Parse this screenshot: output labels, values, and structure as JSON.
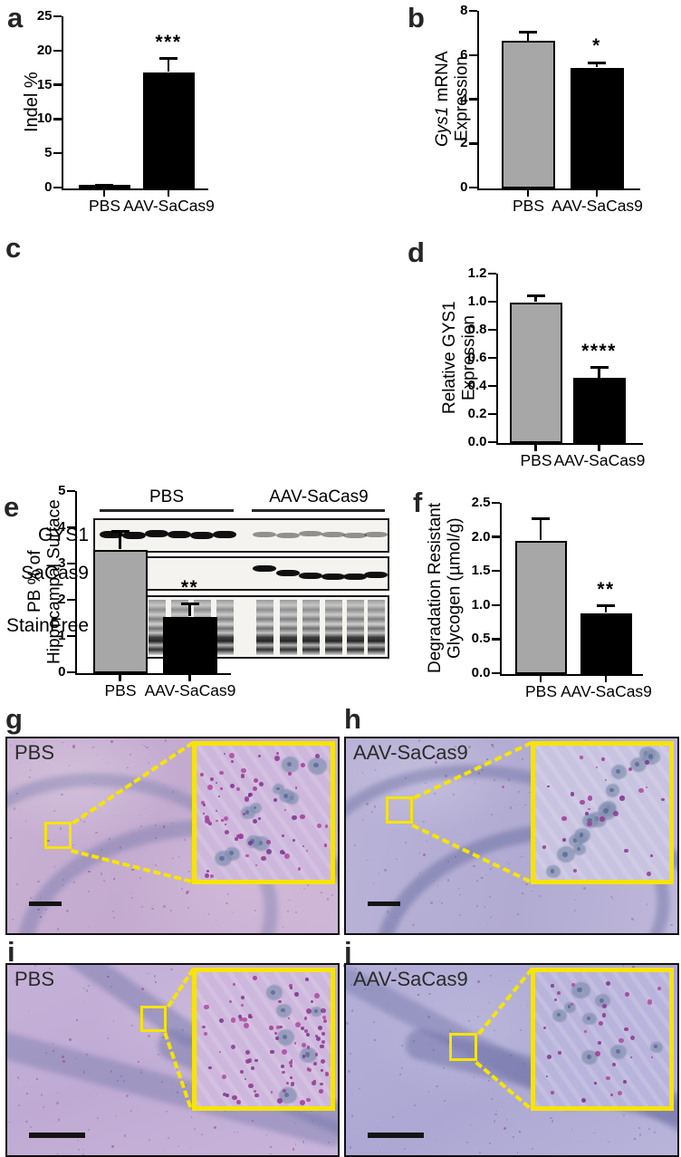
{
  "chart_data": [
    {
      "type": "bar",
      "panel": "a",
      "ylabel": "Indel %",
      "xlabel": "",
      "categories": [
        "PBS",
        "AAV-SaCas9"
      ],
      "values": [
        0.2,
        16.9
      ],
      "errors": [
        0.15,
        1.9
      ],
      "ylim": [
        0,
        25
      ],
      "yticks": [
        "0",
        "5",
        "10",
        "15",
        "20",
        "25"
      ],
      "bar_colors": [
        "#000000",
        "#000000"
      ],
      "significance": "***",
      "significance_on": "AAV-SaCas9",
      "legend_position": "none",
      "grid": false
    },
    {
      "type": "bar",
      "panel": "b",
      "ylabel": "Gys1 mRNA Expression",
      "ylabel_parts": [
        {
          "text": "Gys1",
          "italic": true
        },
        {
          "text": " mRNA Expression",
          "italic": false
        }
      ],
      "xlabel": "",
      "categories": [
        "PBS",
        "AAV-SaCas9"
      ],
      "values": [
        6.65,
        5.45
      ],
      "errors": [
        0.4,
        0.2
      ],
      "ylim": [
        0,
        8
      ],
      "yticks": [
        "0",
        "2",
        "4",
        "6",
        "8"
      ],
      "bar_colors": [
        "#a7a7a7",
        "#000000"
      ],
      "significance": "*",
      "significance_on": "AAV-SaCas9",
      "legend_position": "none",
      "grid": false
    },
    {
      "type": "bar",
      "panel": "d",
      "ylabel": "Relative GYS1 Expression",
      "xlabel": "",
      "categories": [
        "PBS",
        "AAV-SaCas9"
      ],
      "values": [
        1.0,
        0.46
      ],
      "errors": [
        0.04,
        0.07
      ],
      "ylim": [
        0,
        1.2
      ],
      "yticks": [
        "0.0",
        "0.2",
        "0.4",
        "0.6",
        "0.8",
        "1.0",
        "1.2"
      ],
      "bar_colors": [
        "#a7a7a7",
        "#000000"
      ],
      "significance": "****",
      "significance_on": "AAV-SaCas9",
      "legend_position": "none",
      "grid": false
    },
    {
      "type": "bar",
      "panel": "e",
      "ylabel": "PB % of Hippocampal Surface",
      "ylabel_lines": [
        "PB % of",
        "Hippocampal Surface"
      ],
      "xlabel": "",
      "categories": [
        "PBS",
        "AAV-SaCas9"
      ],
      "values": [
        3.4,
        1.55
      ],
      "errors": [
        0.48,
        0.33
      ],
      "ylim": [
        0,
        5
      ],
      "yticks": [
        "0",
        "1",
        "2",
        "3",
        "4",
        "5"
      ],
      "bar_colors": [
        "#a7a7a7",
        "#000000"
      ],
      "significance": "**",
      "significance_on": "AAV-SaCas9",
      "legend_position": "none",
      "grid": false
    },
    {
      "type": "bar",
      "panel": "f",
      "ylabel": "Degradation Resistant Glycogen (µmol/g)",
      "ylabel_lines": [
        "Degradation Resistant",
        "Glycogen (µmol/g)"
      ],
      "xlabel": "",
      "categories": [
        "PBS",
        "AAV-SaCas9"
      ],
      "values": [
        1.95,
        0.89
      ],
      "errors": [
        0.32,
        0.1
      ],
      "ylim": [
        0,
        2.5
      ],
      "yticks": [
        "0.0",
        "0.5",
        "1.0",
        "1.5",
        "2.0",
        "2.5"
      ],
      "bar_colors": [
        "#a7a7a7",
        "#000000"
      ],
      "significance": "**",
      "significance_on": "AAV-SaCas9",
      "legend_position": "none",
      "grid": false
    }
  ],
  "western_blot": {
    "panel": "c",
    "group_labels": [
      "PBS",
      "AAV-SaCas9"
    ],
    "lanes_per_group": 6,
    "rows": [
      {
        "label": "GYS1",
        "pbs_bands": "strong",
        "aav_bands": "faint"
      },
      {
        "label": "SaCas9",
        "pbs_bands": "none",
        "aav_bands": "strong"
      },
      {
        "label": "StainFree",
        "pbs_bands": "ladder",
        "aav_bands": "ladder"
      }
    ]
  },
  "histology": [
    {
      "panel": "g",
      "label": "PBS",
      "region": "hippocampus",
      "granules": 70,
      "cells": 11,
      "has_scale_bar": true
    },
    {
      "panel": "h",
      "label": "AAV-SaCas9",
      "region": "hippocampus",
      "granules": 26,
      "cells": 15,
      "has_scale_bar": true
    },
    {
      "panel": "i",
      "label": "PBS",
      "region": "cortex",
      "granules": 95,
      "cells": 6,
      "has_scale_bar": true
    },
    {
      "panel": "j",
      "label": "AAV-SaCas9",
      "region": "cortex",
      "granules": 32,
      "cells": 8,
      "has_scale_bar": true
    }
  ],
  "colors": {
    "gray_bar": "#a7a7a7",
    "black_bar": "#000000",
    "inset_yellow": "#f6e403",
    "granule_purple": "#a23d98",
    "panel_letter": "#262626"
  }
}
